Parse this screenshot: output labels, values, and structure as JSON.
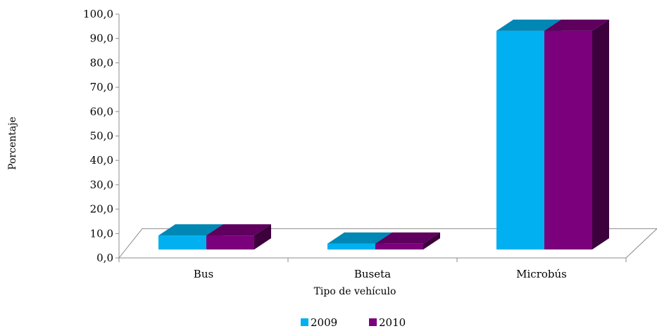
{
  "chart_data": {
    "type": "bar",
    "style": "3d-clustered",
    "categories": [
      "Bus",
      "Buseta",
      "Microbús"
    ],
    "series": [
      {
        "name": "2009",
        "values": [
          6.0,
          2.5,
          94.0
        ],
        "color": "#00B0F0",
        "top_color": "#0087B3",
        "side_color": "#00709A"
      },
      {
        "name": "2010",
        "values": [
          6.0,
          2.5,
          94.0
        ],
        "color": "#7B007B",
        "top_color": "#5F005F",
        "side_color": "#3C003C"
      }
    ],
    "xlabel": "Tipo de vehículo",
    "ylabel": "Porcentaje",
    "ylim": [
      0,
      100
    ],
    "yticks": [
      "0,0",
      "10,0",
      "20,0",
      "30,0",
      "40,0",
      "50,0",
      "60,0",
      "70,0",
      "80,0",
      "90,0",
      "100,0"
    ],
    "grid": false,
    "legend_position": "bottom"
  }
}
